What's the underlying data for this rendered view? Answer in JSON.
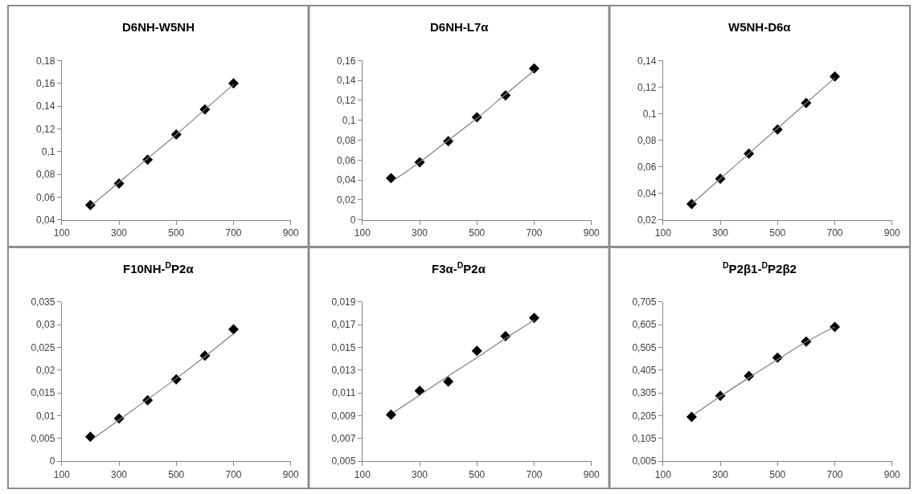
{
  "chart_data": [
    {
      "type": "scatter",
      "title": "D6NH-W5NH",
      "marker": "diamond",
      "x": [
        200,
        300,
        400,
        500,
        600,
        700
      ],
      "xlim": [
        100,
        900
      ],
      "xticks": [
        100,
        300,
        500,
        700,
        900
      ],
      "ylim": [
        0.04,
        0.18
      ],
      "yticks": [
        {
          "value": 0.04,
          "label": "0,04"
        },
        {
          "value": 0.06,
          "label": "0,06"
        },
        {
          "value": 0.08,
          "label": "0,08"
        },
        {
          "value": 0.1,
          "label": "0,1"
        },
        {
          "value": 0.12,
          "label": "0,12"
        },
        {
          "value": 0.14,
          "label": "0,14"
        },
        {
          "value": 0.16,
          "label": "0,16"
        },
        {
          "value": 0.18,
          "label": "0,18"
        }
      ],
      "series": [
        {
          "type": "scatter",
          "color": "#000000",
          "values": [
            0.053,
            0.072,
            0.093,
            0.115,
            0.137,
            0.16
          ]
        },
        {
          "type": "line",
          "color": "#808080",
          "marker": "none",
          "x": [
            200,
            300,
            400,
            500,
            600,
            700
          ],
          "values": [
            0.052,
            0.073,
            0.094,
            0.115,
            0.137,
            0.159
          ]
        }
      ]
    },
    {
      "type": "scatter",
      "title": "D6NH-L7α",
      "marker": "diamond",
      "x": [
        200,
        300,
        400,
        500,
        600,
        700
      ],
      "xlim": [
        100,
        900
      ],
      "xticks": [
        100,
        300,
        500,
        700,
        900
      ],
      "ylim": [
        0,
        0.16
      ],
      "yticks": [
        {
          "value": 0,
          "label": "0"
        },
        {
          "value": 0.02,
          "label": "0,02"
        },
        {
          "value": 0.04,
          "label": "0,04"
        },
        {
          "value": 0.06,
          "label": "0,06"
        },
        {
          "value": 0.08,
          "label": "0,08"
        },
        {
          "value": 0.1,
          "label": "0,1"
        },
        {
          "value": 0.12,
          "label": "0,12"
        },
        {
          "value": 0.14,
          "label": "0,14"
        },
        {
          "value": 0.16,
          "label": "0,16"
        }
      ],
      "series": [
        {
          "type": "scatter",
          "color": "#000000",
          "values": [
            0.042,
            0.058,
            0.079,
            0.103,
            0.125,
            0.152
          ]
        },
        {
          "type": "line",
          "color": "#808080",
          "marker": "none",
          "x": [
            210,
            300,
            400,
            500,
            600,
            700
          ],
          "values": [
            0.04,
            0.058,
            0.08,
            0.102,
            0.126,
            0.15
          ]
        }
      ]
    },
    {
      "type": "scatter",
      "title": "W5NH-D6α",
      "marker": "diamond",
      "x": [
        200,
        300,
        400,
        500,
        600,
        700
      ],
      "xlim": [
        100,
        900
      ],
      "xticks": [
        100,
        300,
        500,
        700,
        900
      ],
      "ylim": [
        0.02,
        0.14
      ],
      "yticks": [
        {
          "value": 0.02,
          "label": "0,02"
        },
        {
          "value": 0.04,
          "label": "0,04"
        },
        {
          "value": 0.06,
          "label": "0,06"
        },
        {
          "value": 0.08,
          "label": "0,08"
        },
        {
          "value": 0.1,
          "label": "0,1"
        },
        {
          "value": 0.12,
          "label": "0,12"
        },
        {
          "value": 0.14,
          "label": "0,14"
        }
      ],
      "series": [
        {
          "type": "scatter",
          "color": "#000000",
          "values": [
            0.032,
            0.051,
            0.07,
            0.088,
            0.108,
            0.128
          ]
        },
        {
          "type": "line",
          "color": "#808080",
          "marker": "none",
          "x": [
            200,
            300,
            400,
            500,
            600,
            700
          ],
          "values": [
            0.032,
            0.051,
            0.07,
            0.089,
            0.108,
            0.127
          ]
        }
      ]
    },
    {
      "type": "scatter",
      "title": "F10NH-$^{D}$P2α",
      "marker": "diamond",
      "x": [
        200,
        300,
        400,
        500,
        600,
        700
      ],
      "xlim": [
        100,
        900
      ],
      "xticks": [
        100,
        300,
        500,
        700,
        900
      ],
      "ylim": [
        0,
        0.035
      ],
      "yticks": [
        {
          "value": 0,
          "label": "0"
        },
        {
          "value": 0.005,
          "label": "0,005"
        },
        {
          "value": 0.01,
          "label": "0,01"
        },
        {
          "value": 0.015,
          "label": "0,015"
        },
        {
          "value": 0.02,
          "label": "0,02"
        },
        {
          "value": 0.025,
          "label": "0,025"
        },
        {
          "value": 0.03,
          "label": "0,03"
        },
        {
          "value": 0.035,
          "label": "0,035"
        }
      ],
      "series": [
        {
          "type": "scatter",
          "color": "#000000",
          "values": [
            0.0054,
            0.0094,
            0.0134,
            0.018,
            0.0232,
            0.029
          ]
        },
        {
          "type": "line",
          "color": "#808080",
          "marker": "none",
          "x": [
            210,
            300,
            400,
            500,
            600,
            700
          ],
          "values": [
            0.005,
            0.0091,
            0.0136,
            0.0182,
            0.023,
            0.028
          ]
        }
      ]
    },
    {
      "type": "scatter",
      "title": "F3α-$^{D}$P2α",
      "marker": "diamond",
      "x": [
        200,
        300,
        400,
        500,
        600,
        700
      ],
      "xlim": [
        100,
        900
      ],
      "xticks": [
        100,
        300,
        500,
        700,
        900
      ],
      "ylim": [
        0.005,
        0.019
      ],
      "yticks": [
        {
          "value": 0.005,
          "label": "0,005"
        },
        {
          "value": 0.007,
          "label": "0,007"
        },
        {
          "value": 0.009,
          "label": "0,009"
        },
        {
          "value": 0.011,
          "label": "0,011"
        },
        {
          "value": 0.013,
          "label": "0,013"
        },
        {
          "value": 0.015,
          "label": "0,015"
        },
        {
          "value": 0.017,
          "label": "0,017"
        },
        {
          "value": 0.019,
          "label": "0,019"
        }
      ],
      "series": [
        {
          "type": "scatter",
          "color": "#000000",
          "values": [
            0.0091,
            0.0112,
            0.012,
            0.0147,
            0.016,
            0.0176
          ]
        },
        {
          "type": "line",
          "color": "#808080",
          "marker": "none",
          "x": [
            210,
            300,
            400,
            500,
            600,
            700
          ],
          "values": [
            0.0093,
            0.0108,
            0.0125,
            0.0141,
            0.0158,
            0.0174
          ]
        }
      ]
    },
    {
      "type": "scatter",
      "title": "$^{D}$P2β1-$^{D}$P2β2",
      "marker": "diamond",
      "x": [
        200,
        300,
        400,
        500,
        600,
        700
      ],
      "xlim": [
        100,
        900
      ],
      "xticks": [
        100,
        300,
        500,
        700,
        900
      ],
      "ylim": [
        0.005,
        0.705
      ],
      "yticks": [
        {
          "value": 0.005,
          "label": "0,005"
        },
        {
          "value": 0.105,
          "label": "0,105"
        },
        {
          "value": 0.205,
          "label": "0,205"
        },
        {
          "value": 0.305,
          "label": "0,305"
        },
        {
          "value": 0.405,
          "label": "0,405"
        },
        {
          "value": 0.505,
          "label": "0,505"
        },
        {
          "value": 0.605,
          "label": "0,605"
        },
        {
          "value": 0.705,
          "label": "0,705"
        }
      ],
      "series": [
        {
          "type": "scatter",
          "color": "#000000",
          "values": [
            0.2,
            0.293,
            0.38,
            0.46,
            0.531,
            0.595
          ]
        },
        {
          "type": "line",
          "color": "#808080",
          "marker": "none",
          "x": [
            210,
            300,
            400,
            500,
            600,
            700
          ],
          "values": [
            0.212,
            0.29,
            0.372,
            0.452,
            0.53,
            0.595
          ]
        }
      ]
    }
  ]
}
